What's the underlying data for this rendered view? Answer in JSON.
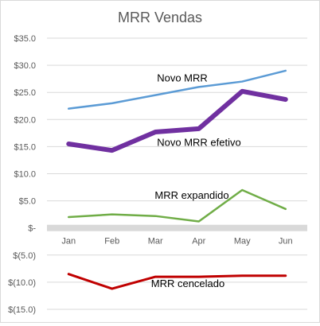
{
  "chart_data": {
    "type": "line",
    "title": "MRR Vendas",
    "xlabel": "",
    "ylabel": "",
    "categories": [
      "Jan",
      "Feb",
      "Mar",
      "Apr",
      "May",
      "Jun"
    ],
    "ylim": [
      -15,
      35
    ],
    "yticks": [
      35,
      30,
      25,
      20,
      15,
      10,
      5,
      0,
      -5,
      -10,
      -15
    ],
    "ytick_labels": [
      "$35.0",
      "$30.0",
      "$25.0",
      "$20.0",
      "$15.0",
      "$10.0",
      "$5.0",
      "$-",
      "$(5.0)",
      "$(10.0)",
      "$(15.0)"
    ],
    "grid": true,
    "legend": "none",
    "series": [
      {
        "name": "Novo MRR",
        "color": "#5b9bd5",
        "values": [
          22.0,
          23.0,
          24.5,
          26.0,
          27.0,
          29.0
        ]
      },
      {
        "name": "Novo MRR efetivo",
        "color": "#7030a0",
        "values": [
          15.5,
          14.3,
          17.7,
          18.3,
          25.2,
          23.7
        ]
      },
      {
        "name": "MRR expandido",
        "color": "#70ad47",
        "values": [
          2.0,
          2.5,
          2.2,
          1.2,
          7.0,
          3.5
        ]
      },
      {
        "name": "MRR cencelado",
        "color": "#c00000",
        "values": [
          -8.5,
          -11.2,
          -9.0,
          -9.0,
          -8.8,
          -8.8
        ]
      }
    ]
  }
}
